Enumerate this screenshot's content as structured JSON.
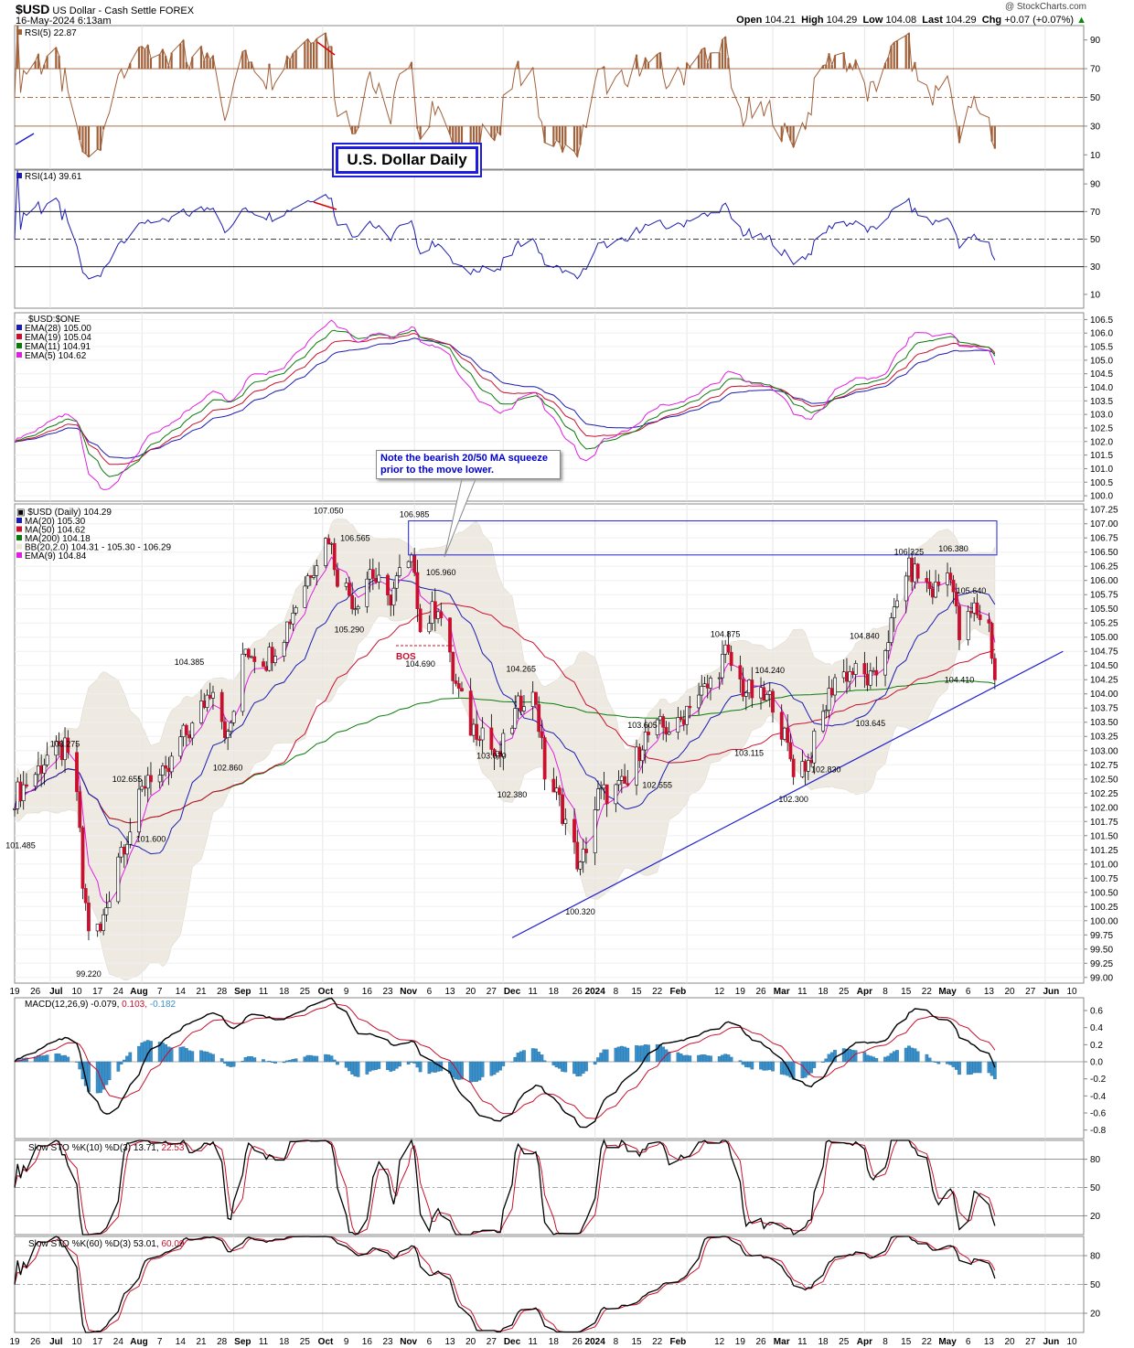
{
  "header": {
    "symbol": "$USD",
    "name": "US Dollar - Cash Settle",
    "exchange": "FOREX",
    "date": "16-May-2024 6:13am",
    "watermark": "@ StockCharts.com",
    "open_label": "Open",
    "open": "104.21",
    "high_label": "High",
    "high": "104.29",
    "low_label": "Low",
    "low": "104.08",
    "last_label": "Last",
    "last": "104.29",
    "chg_label": "Chg",
    "chg": "+0.07 (+0.07%)"
  },
  "title_box": "U.S. Dollar Daily",
  "note": "Note the bearish 20/50 MA squeeze prior to the move lower.",
  "colors": {
    "blue": "#1c1cb0",
    "red": "#c8102e",
    "green": "#0a7a0a",
    "magenta": "#e020e0",
    "rsi5": "#a0603a",
    "macd_hist": "#3a8fc8",
    "bb": "#eae6dc"
  },
  "panels": {
    "rsi5": {
      "legend": "RSI(5) 22.87",
      "ticks": [
        "90",
        "70",
        "50",
        "30",
        "10"
      ]
    },
    "rsi14": {
      "legend": "RSI(14) 39.61",
      "ticks": [
        "90",
        "70",
        "50",
        "30",
        "10"
      ]
    },
    "ema": {
      "legend_title": "$USD:$ONE",
      "legends": [
        "EMA(28) 105.00",
        "EMA(19) 105.04",
        "EMA(11) 104.91",
        "EMA(5) 104.62"
      ],
      "ticks": [
        "106.5",
        "106.0",
        "105.5",
        "105.0",
        "104.5",
        "104.0",
        "103.5",
        "103.0",
        "102.5",
        "102.0",
        "101.5",
        "101.0",
        "100.5",
        "100.0"
      ]
    },
    "price": {
      "legend_title": "$USD (Daily) 104.29",
      "legends": [
        "MA(20) 105.30",
        "MA(50) 104.62",
        "MA(200) 104.18",
        "BB(20,2.0) 104.31 - 105.30 - 106.29",
        "EMA(9) 104.84"
      ],
      "ticks": [
        "107.25",
        "107.00",
        "106.75",
        "106.50",
        "106.25",
        "106.00",
        "105.75",
        "105.50",
        "105.25",
        "105.00",
        "104.75",
        "104.50",
        "104.25",
        "104.00",
        "103.75",
        "103.50",
        "103.25",
        "103.00",
        "102.75",
        "102.50",
        "102.25",
        "102.00",
        "101.75",
        "101.50",
        "101.25",
        "101.00",
        "100.75",
        "100.50",
        "100.25",
        "100.00",
        "99.75",
        "99.50",
        "99.25",
        "99.00"
      ],
      "bos_label": "BOS"
    },
    "macd": {
      "legend_a": "MACD(12,26,9) -0.079, ",
      "legend_b": "0.103, ",
      "legend_c": "-0.182",
      "ticks": [
        "0.6",
        "0.4",
        "0.2",
        "0.0",
        "-0.2",
        "-0.4",
        "-0.6",
        "-0.8"
      ]
    },
    "sto10": {
      "legend_a": "Slow STO %K(10) %D(3) 13.71, ",
      "legend_b": "22.53",
      "ticks": [
        "80",
        "50",
        "20"
      ]
    },
    "sto60": {
      "legend_a": "Slow STO %K(60) %D(3) 53.01, ",
      "legend_b": "60.09",
      "ticks": [
        "80",
        "50",
        "20"
      ]
    }
  },
  "x_axis_labels": [
    "19",
    "26",
    "Jul",
    "10",
    "17",
    "24",
    "Aug",
    "7",
    "14",
    "21",
    "28",
    "Sep",
    "11",
    "18",
    "25",
    "Oct",
    "9",
    "16",
    "23",
    "Nov",
    "6",
    "13",
    "20",
    "27",
    "Dec",
    "11",
    "18",
    "26",
    "2024",
    "8",
    "15",
    "22",
    "Feb",
    "12",
    "19",
    "26",
    "Mar",
    "11",
    "18",
    "25",
    "Apr",
    "8",
    "15",
    "22",
    "May",
    "6",
    "13",
    "20",
    "27",
    "Jun",
    "10"
  ],
  "chart_data": {
    "type": "line",
    "title": "$USD US Dollar - Cash Settle FOREX",
    "x_start": "2023-06-19",
    "x_end": "2024-06-14",
    "price_annotations": [
      {
        "x": "2023-07-14",
        "y": 99.22,
        "label": "99.220"
      },
      {
        "x": "2023-06-21",
        "y": 101.485,
        "label": "101.485"
      },
      {
        "x": "2023-07-06",
        "y": 103.275,
        "label": "103.275"
      },
      {
        "x": "2023-07-27",
        "y": 102.655,
        "label": "102.655"
      },
      {
        "x": "2023-08-04",
        "y": 101.6,
        "label": "101.600"
      },
      {
        "x": "2023-08-17",
        "y": 104.385,
        "label": "104.385"
      },
      {
        "x": "2023-08-30",
        "y": 102.86,
        "label": "102.860"
      },
      {
        "x": "2023-10-03",
        "y": 107.05,
        "label": "107.050"
      },
      {
        "x": "2023-10-12",
        "y": 106.565,
        "label": "106.565"
      },
      {
        "x": "2023-10-10",
        "y": 105.29,
        "label": "105.290"
      },
      {
        "x": "2023-11-01",
        "y": 106.985,
        "label": "106.985"
      },
      {
        "x": "2023-11-10",
        "y": 105.96,
        "label": "105.960"
      },
      {
        "x": "2023-11-03",
        "y": 104.69,
        "label": "104.690"
      },
      {
        "x": "2023-11-27",
        "y": 103.07,
        "label": "103.070"
      },
      {
        "x": "2023-12-04",
        "y": 102.38,
        "label": "102.380"
      },
      {
        "x": "2023-12-07",
        "y": 104.265,
        "label": "104.265"
      },
      {
        "x": "2023-12-27",
        "y": 100.32,
        "label": "100.320"
      },
      {
        "x": "2024-01-17",
        "y": 103.605,
        "label": "103.605"
      },
      {
        "x": "2024-01-22",
        "y": 102.555,
        "label": "102.555"
      },
      {
        "x": "2024-02-14",
        "y": 104.875,
        "label": "104.875"
      },
      {
        "x": "2024-02-22",
        "y": 103.115,
        "label": "103.115"
      },
      {
        "x": "2024-02-29",
        "y": 104.24,
        "label": "104.240"
      },
      {
        "x": "2024-03-08",
        "y": 102.3,
        "label": "102.300"
      },
      {
        "x": "2024-03-19",
        "y": 102.83,
        "label": "102.830"
      },
      {
        "x": "2024-04-01",
        "y": 104.84,
        "label": "104.840"
      },
      {
        "x": "2024-04-03",
        "y": 103.645,
        "label": "103.645"
      },
      {
        "x": "2024-04-16",
        "y": 106.325,
        "label": "106.325"
      },
      {
        "x": "2024-05-01",
        "y": 106.38,
        "label": "106.380"
      },
      {
        "x": "2024-05-03",
        "y": 104.41,
        "label": "104.410"
      },
      {
        "x": "2024-05-07",
        "y": 105.64,
        "label": "105.640"
      }
    ],
    "resistance_zone": {
      "x_from": "2023-10-30",
      "x_to": "2024-06-14",
      "y_from": 106.45,
      "y_to": 107.05
    },
    "trendline": {
      "from": {
        "x": "2023-12-04",
        "y": 99.7
      },
      "to": {
        "x": "2024-06-07",
        "y": 104.75
      }
    },
    "price_closes": [
      [
        "2023-06-19",
        102.2
      ],
      [
        "2023-06-26",
        102.6
      ],
      [
        "2023-06-30",
        102.9
      ],
      [
        "2023-07-06",
        103.0
      ],
      [
        "2023-07-10",
        102.3
      ],
      [
        "2023-07-12",
        100.6
      ],
      [
        "2023-07-14",
        99.9
      ],
      [
        "2023-07-18",
        99.8
      ],
      [
        "2023-07-24",
        101.2
      ],
      [
        "2023-07-28",
        101.6
      ],
      [
        "2023-08-03",
        102.6
      ],
      [
        "2023-08-09",
        102.5
      ],
      [
        "2023-08-14",
        103.2
      ],
      [
        "2023-08-18",
        103.4
      ],
      [
        "2023-08-25",
        104.2
      ],
      [
        "2023-08-30",
        103.2
      ],
      [
        "2023-09-05",
        104.8
      ],
      [
        "2023-09-12",
        104.6
      ],
      [
        "2023-09-18",
        105.1
      ],
      [
        "2023-09-22",
        105.6
      ],
      [
        "2023-09-27",
        106.2
      ],
      [
        "2023-10-03",
        106.8
      ],
      [
        "2023-10-06",
        106.1
      ],
      [
        "2023-10-12",
        105.6
      ],
      [
        "2023-10-17",
        106.2
      ],
      [
        "2023-10-23",
        105.6
      ],
      [
        "2023-10-27",
        106.1
      ],
      [
        "2023-11-01",
        106.3
      ],
      [
        "2023-11-03",
        105.1
      ],
      [
        "2023-11-09",
        105.6
      ],
      [
        "2023-11-14",
        104.3
      ],
      [
        "2023-11-20",
        103.4
      ],
      [
        "2023-11-24",
        103.4
      ],
      [
        "2023-11-29",
        102.8
      ],
      [
        "2023-12-04",
        103.5
      ],
      [
        "2023-12-08",
        104.0
      ],
      [
        "2023-12-12",
        103.9
      ],
      [
        "2023-12-15",
        102.6
      ],
      [
        "2023-12-20",
        102.1
      ],
      [
        "2023-12-27",
        100.9
      ],
      [
        "2024-01-02",
        102.2
      ],
      [
        "2024-01-08",
        102.3
      ],
      [
        "2024-01-12",
        102.4
      ],
      [
        "2024-01-17",
        103.2
      ],
      [
        "2024-01-23",
        103.4
      ],
      [
        "2024-01-29",
        103.4
      ],
      [
        "2024-02-02",
        103.9
      ],
      [
        "2024-02-08",
        104.1
      ],
      [
        "2024-02-14",
        104.7
      ],
      [
        "2024-02-20",
        104.1
      ],
      [
        "2024-02-26",
        103.9
      ],
      [
        "2024-03-01",
        103.9
      ],
      [
        "2024-03-08",
        102.7
      ],
      [
        "2024-03-13",
        102.8
      ],
      [
        "2024-03-19",
        103.8
      ],
      [
        "2024-03-22",
        104.3
      ],
      [
        "2024-03-28",
        104.4
      ],
      [
        "2024-04-04",
        104.2
      ],
      [
        "2024-04-10",
        105.2
      ],
      [
        "2024-04-15",
        106.2
      ],
      [
        "2024-04-19",
        106.1
      ],
      [
        "2024-04-24",
        105.8
      ],
      [
        "2024-04-30",
        106.2
      ],
      [
        "2024-05-03",
        105.0
      ],
      [
        "2024-05-08",
        105.5
      ],
      [
        "2024-05-13",
        105.2
      ],
      [
        "2024-05-15",
        104.29
      ]
    ],
    "ma20_last": 105.3,
    "ma50_last": 104.62,
    "ma200_last": 104.18,
    "ema9_last": 104.84,
    "bb": {
      "lower": 104.31,
      "mid": 105.3,
      "upper": 106.29
    }
  }
}
